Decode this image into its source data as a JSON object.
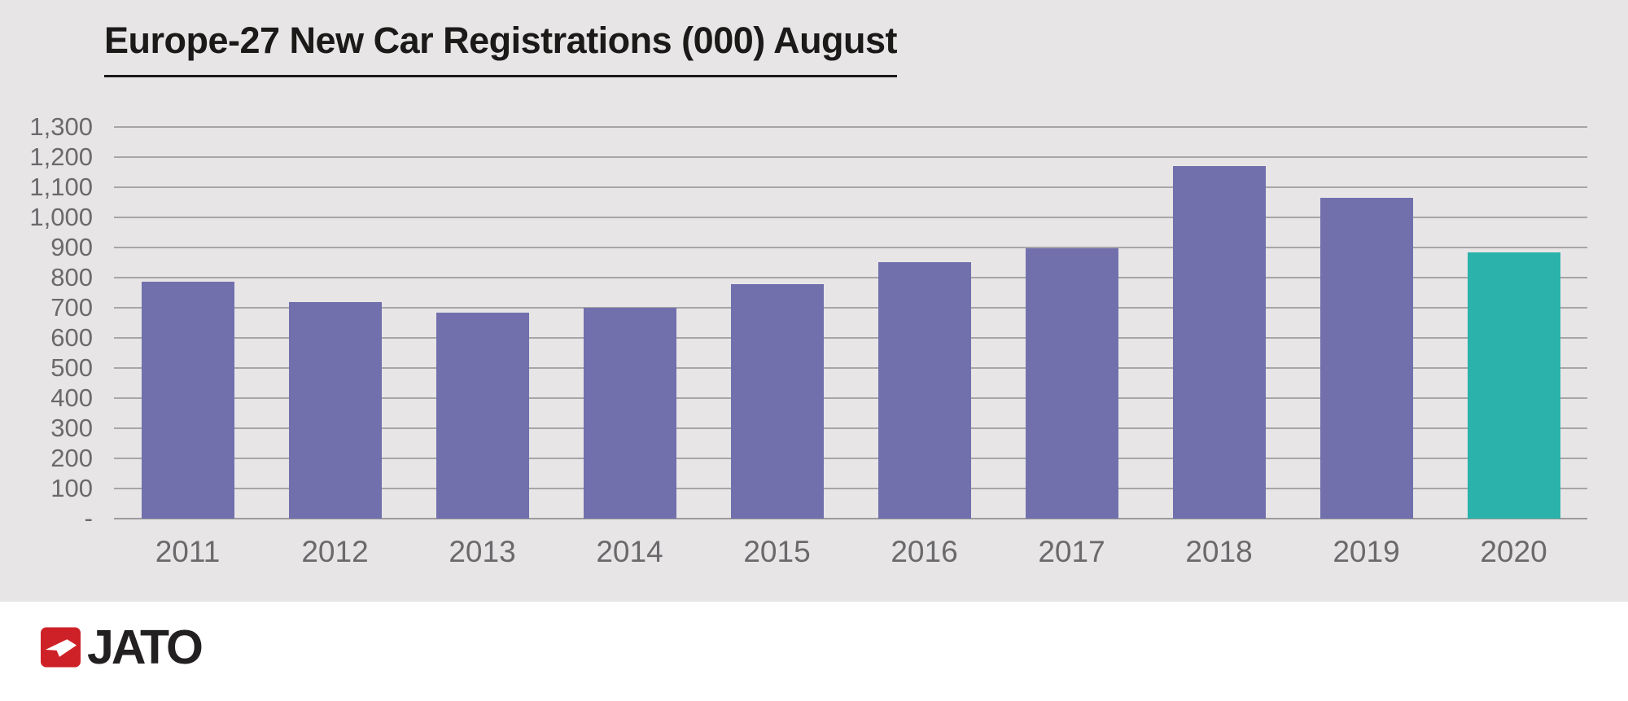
{
  "chart": {
    "title": "Europe-27 New Car Registrations (000) August"
  },
  "chart_data": {
    "type": "bar",
    "categories": [
      "2011",
      "2012",
      "2013",
      "2014",
      "2015",
      "2016",
      "2017",
      "2018",
      "2019",
      "2020"
    ],
    "values": [
      786,
      718,
      683,
      700,
      779,
      851,
      896,
      1169,
      1066,
      884
    ],
    "title": "Europe-27 New Car Registrations (000) August",
    "xlabel": "",
    "ylabel": "",
    "ylim": [
      0,
      1300
    ],
    "ytick_step": 100,
    "ytick_labels": [
      "-",
      "100",
      "200",
      "300",
      "400",
      "500",
      "600",
      "700",
      "800",
      "900",
      "1,000",
      "1,100",
      "1,200",
      "1,300"
    ],
    "grid": true,
    "legend": false,
    "bar_color": "#7170ad",
    "highlight_category": "2020",
    "highlight_index": 9,
    "highlight_color": "#2ab2ab",
    "plot_background": "#e7e5e6",
    "gridline_color": "#a7a5a7",
    "tick_label_color": "#6a696b"
  },
  "footer": {
    "logo_text": "JATO",
    "logo_color": "#ce2127"
  }
}
